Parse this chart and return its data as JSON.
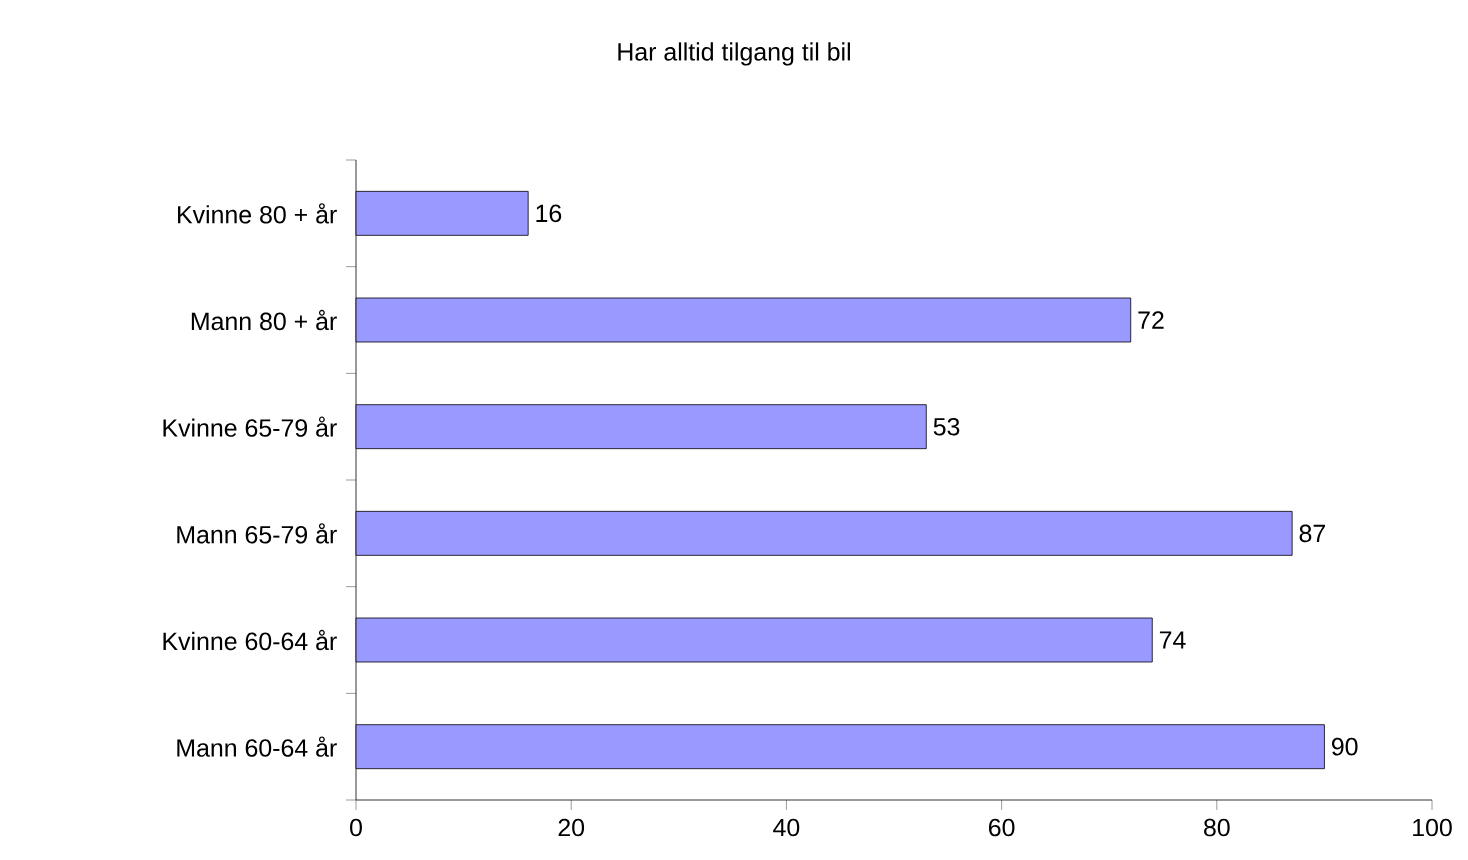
{
  "chart_data": {
    "type": "bar",
    "orientation": "horizontal",
    "title": "Har alltid tilgang til bil",
    "categories": [
      "Kvinne 80 + år",
      "Mann 80 + år",
      "Kvinne 65-79 år",
      "Mann 65-79 år",
      "Kvinne 60-64 år",
      "Mann 60-64 år"
    ],
    "values": [
      16,
      72,
      53,
      87,
      74,
      90
    ],
    "color": "#9999ff",
    "xlim": [
      0,
      100
    ],
    "xticks": [
      0,
      20,
      40,
      60,
      80,
      100
    ],
    "grid": false,
    "data_labels": true
  }
}
